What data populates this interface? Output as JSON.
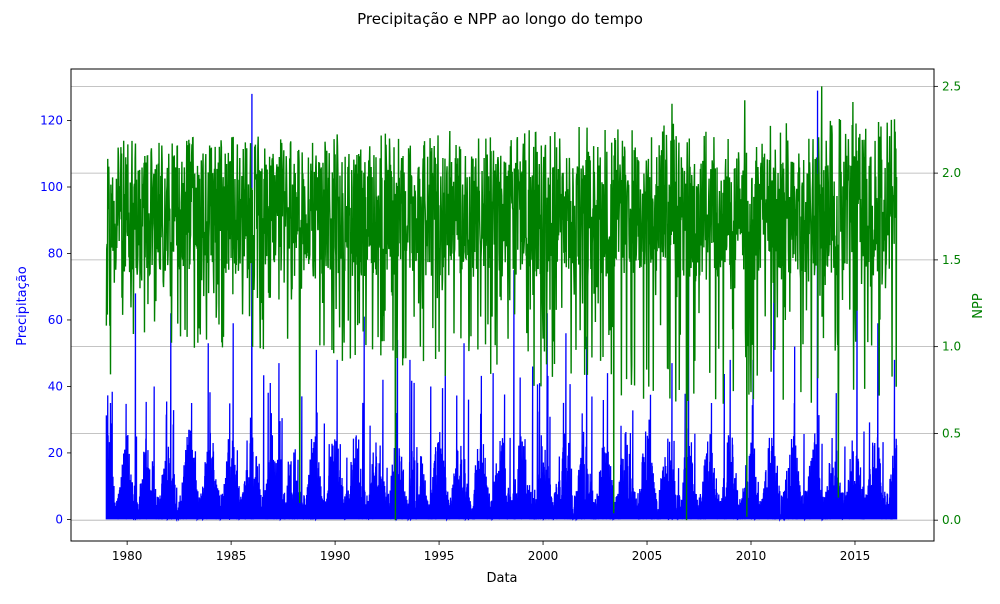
{
  "chart_data": {
    "type": "line",
    "title": "Precipitação e NPP ao longo do tempo",
    "xlabel": "Data",
    "ylabel_left": "Precipitação",
    "ylabel_right": "NPP",
    "x_ticks": [
      "1980",
      "1985",
      "1990",
      "1995",
      "2000",
      "2005",
      "2010",
      "2015"
    ],
    "y_left_ticks": [
      "0",
      "20",
      "40",
      "60",
      "80",
      "100",
      "120"
    ],
    "y_right_ticks": [
      "0.0",
      "0.5",
      "1.0",
      "1.5",
      "2.0",
      "2.5"
    ],
    "xlim": [
      1977.3,
      2018.8
    ],
    "ylim_left": [
      -6.5,
      135.5
    ],
    "ylim_right": [
      -0.12,
      2.6
    ],
    "grid": "horizontal lines at right-axis ticks",
    "colors": {
      "precipitation": "#0000ff",
      "npp": "#008000"
    },
    "series": [
      {
        "axis": "left",
        "color": "#0000ff",
        "x_range": [
          "1979-01",
          "2017-01"
        ],
        "typical_range": [
          0,
          25
        ],
        "annual_peaks": [
          [
            1979.2,
            35
          ],
          [
            1980.4,
            68
          ],
          [
            1981.3,
            40
          ],
          [
            1982.1,
            62
          ],
          [
            1983.1,
            35
          ],
          [
            1983.9,
            53
          ],
          [
            1985.1,
            59
          ],
          [
            1986.0,
            128
          ],
          [
            1987.3,
            47
          ],
          [
            1988.4,
            37
          ],
          [
            1989.1,
            51
          ],
          [
            1990.1,
            48
          ],
          [
            1991.4,
            61
          ],
          [
            1992.3,
            42
          ],
          [
            1993.0,
            54
          ],
          [
            1993.6,
            48
          ],
          [
            1994.6,
            40
          ],
          [
            1995.3,
            48
          ],
          [
            1996.2,
            53
          ],
          [
            1997.6,
            44
          ],
          [
            1998.6,
            75
          ],
          [
            1999.5,
            46
          ],
          [
            2000.2,
            62
          ],
          [
            2001.1,
            56
          ],
          [
            2002.1,
            55
          ],
          [
            2003.1,
            44
          ],
          [
            2004.2,
            26
          ],
          [
            2005.1,
            30
          ],
          [
            2006.2,
            47
          ],
          [
            2007.0,
            75
          ],
          [
            2008.1,
            35
          ],
          [
            2009.0,
            48
          ],
          [
            2010.1,
            48
          ],
          [
            2011.1,
            77
          ],
          [
            2012.1,
            52
          ],
          [
            2013.2,
            129
          ],
          [
            2014.1,
            38
          ],
          [
            2015.1,
            78
          ],
          [
            2016.1,
            59
          ],
          [
            2016.9,
            48
          ]
        ]
      },
      {
        "axis": "right",
        "color": "#008000",
        "x_range": [
          "1979-01",
          "2017-01"
        ],
        "typical_range": [
          1.4,
          2.1
        ],
        "notable_lows": [
          [
            1979.2,
            0.84
          ],
          [
            1988.3,
            0.1
          ],
          [
            1992.9,
            0.0
          ],
          [
            2003.4,
            0.04
          ],
          [
            2006.9,
            0.0
          ],
          [
            2009.8,
            0.02
          ],
          [
            2014.2,
            0.13
          ]
        ],
        "notable_highs": [
          [
            2006.2,
            2.4
          ],
          [
            2009.7,
            2.42
          ],
          [
            2013.4,
            2.5
          ],
          [
            2014.9,
            2.41
          ]
        ]
      }
    ]
  }
}
